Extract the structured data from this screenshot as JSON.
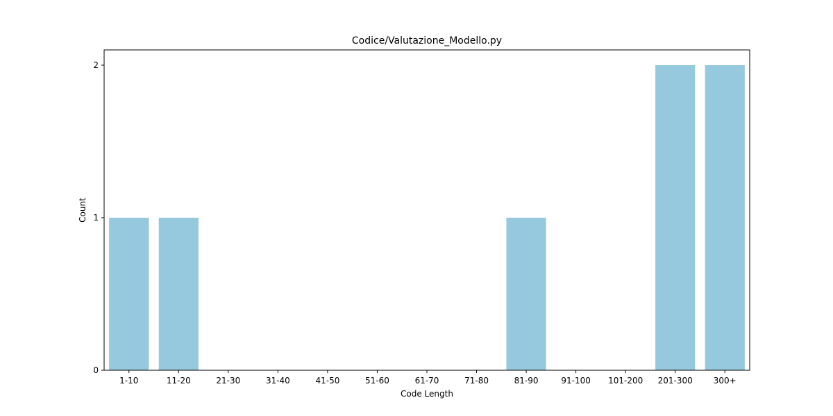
{
  "chart_data": {
    "type": "bar",
    "title": "Codice/Valutazione_Modello.py",
    "xlabel": "Code Length",
    "ylabel": "Count",
    "categories": [
      "1-10",
      "11-20",
      "21-30",
      "31-40",
      "41-50",
      "51-60",
      "61-70",
      "71-80",
      "81-90",
      "91-100",
      "101-200",
      "201-300",
      "300+"
    ],
    "values": [
      1,
      1,
      0,
      0,
      0,
      0,
      0,
      0,
      1,
      0,
      0,
      2,
      2
    ],
    "ylim": [
      0,
      2.1
    ],
    "yticks": [
      0,
      1,
      2
    ],
    "grid": false,
    "bar_color": "#96c9de"
  }
}
